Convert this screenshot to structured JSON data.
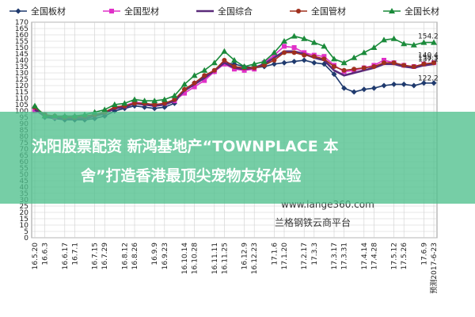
{
  "banner": {
    "line1": "沈阳股票配资 新鸿基地产“TOWNPLACE 本",
    "line2": "舍”打造香港最顶尖宠物友好体验"
  },
  "watermark": {
    "url": "www.lange360.com",
    "brand": "兰格钢铁云商平台"
  },
  "chart_data": {
    "type": "line",
    "ylim": [
      0,
      170
    ],
    "yticks": [
      0,
      5,
      10,
      15,
      20,
      25,
      30,
      35,
      40,
      45,
      50,
      55,
      60,
      65,
      70,
      75,
      80,
      85,
      90,
      95,
      100,
      105,
      110,
      115,
      120,
      125,
      130,
      135,
      140,
      145,
      150,
      155,
      160,
      165,
      170
    ],
    "x_tick_labels": [
      "16.5.20",
      "16.6.3",
      "16.6.17",
      "16.7.1",
      "16.7.15",
      "16.7.29",
      "16.8.12",
      "16.8.26",
      "16.9.9",
      "16.9.23",
      "16.10.14",
      "16.10.28",
      "16.11.11",
      "16.11.25",
      "16.12.9",
      "16.12.23",
      "17.1.6",
      "17.1.20",
      "17.2.17",
      "17.3.3",
      "17.3.17",
      "17.3.31",
      "17.4.14",
      "17.4.28",
      "17.5.12",
      "17.5.26",
      "17.6.9",
      "预测2017-6-23"
    ],
    "series": [
      {
        "name": "全国板材",
        "color": "#1f3a6e",
        "marker": "diamond",
        "values": [
          102,
          95,
          94,
          93,
          93,
          93,
          94,
          96,
          100,
          102,
          104,
          103,
          102,
          103,
          106,
          117,
          122,
          127,
          131,
          138,
          137,
          135,
          134,
          135,
          137,
          138,
          139,
          140,
          138,
          137,
          129,
          118,
          115,
          117,
          118,
          120,
          121,
          121,
          120,
          122,
          122
        ]
      },
      {
        "name": "全国型材",
        "color": "#e030c8",
        "marker": "square",
        "values": [
          100,
          97,
          95,
          95,
          95,
          95,
          97,
          99,
          103,
          104,
          107,
          106,
          105,
          106,
          108,
          114,
          119,
          124,
          131,
          137,
          133,
          132,
          133,
          138,
          144,
          151,
          150,
          146,
          144,
          143,
          136,
          131,
          132,
          134,
          136,
          140,
          138,
          136,
          135,
          137,
          138
        ]
      },
      {
        "name": "全国综合",
        "color": "#5a2a7a",
        "marker": "none",
        "values": [
          101,
          96,
          95,
          94,
          94,
          94,
          96,
          98,
          102,
          103,
          106,
          105,
          104,
          105,
          108,
          116,
          121,
          126,
          132,
          138,
          134,
          133,
          134,
          137,
          142,
          147,
          147,
          145,
          142,
          140,
          132,
          128,
          130,
          132,
          134,
          137,
          137,
          135,
          134,
          136,
          137
        ]
      },
      {
        "name": "全国管材",
        "color": "#a0301e",
        "marker": "circle",
        "values": [
          103,
          97,
          96,
          95,
          95,
          96,
          97,
          99,
          103,
          104,
          106,
          106,
          105,
          106,
          109,
          117,
          122,
          128,
          132,
          140,
          135,
          134,
          134,
          136,
          140,
          146,
          146,
          144,
          143,
          141,
          135,
          132,
          133,
          134,
          135,
          138,
          138,
          136,
          135,
          137,
          138
        ]
      },
      {
        "name": "全国长材",
        "color": "#1a8a3a",
        "marker": "triangle",
        "values": [
          104,
          96,
          96,
          96,
          96,
          97,
          99,
          101,
          105,
          106,
          109,
          108,
          108,
          109,
          112,
          121,
          128,
          132,
          138,
          147,
          140,
          135,
          137,
          139,
          146,
          155,
          159,
          157,
          154,
          151,
          141,
          138,
          142,
          146,
          150,
          156,
          157,
          153,
          152,
          154,
          154
        ]
      }
    ],
    "end_labels": [
      "154.2",
      "140.4",
      "138.3",
      "137.1",
      "122.2"
    ],
    "grid": true,
    "legend_position": "top"
  }
}
